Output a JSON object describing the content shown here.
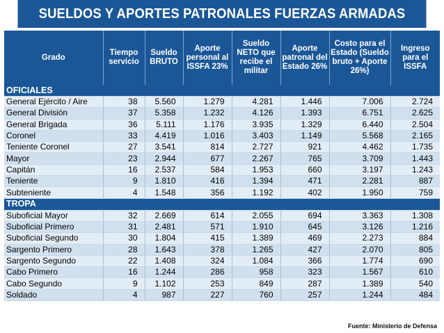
{
  "title": "SUELDOS Y APORTES PATRONALES FUERZAS ARMADAS",
  "headers": [
    "Grado",
    "Tiempo servicio",
    "Sueldo BRUTO",
    "Aporte personal al ISSFA 23%",
    "Sueldo NETO que recibe el militar",
    "Aporte patronal del Estado 26%",
    "Costo para el Estado (Sueldo bruto + Aporte 26%)",
    "Ingreso para el ISSFA"
  ],
  "sections": [
    {
      "name": "OFICIALES",
      "rows": [
        [
          "General Ejército / Aire",
          "38",
          "5.560",
          "1.279",
          "4.281",
          "1.446",
          "7.006",
          "2.724"
        ],
        [
          "General División",
          "37",
          "5.358",
          "1.232",
          "4.126",
          "1.393",
          "6.751",
          "2.625"
        ],
        [
          "General Brigada",
          "36",
          "5.111",
          "1.176",
          "3.935",
          "1.329",
          "6.440",
          "2.504"
        ],
        [
          "Coronel",
          "33",
          "4.419",
          "1.016",
          "3.403",
          "1.149",
          "5.568",
          "2.165"
        ],
        [
          "Teniente Coronel",
          "27",
          "3.541",
          "814",
          "2.727",
          "921",
          "4.462",
          "1.735"
        ],
        [
          "Mayor",
          "23",
          "2.944",
          "677",
          "2.267",
          "765",
          "3.709",
          "1.443"
        ],
        [
          "Capitán",
          "16",
          "2.537",
          "584",
          "1.953",
          "660",
          "3.197",
          "1.243"
        ],
        [
          "Teniente",
          "9",
          "1.810",
          "416",
          "1.394",
          "471",
          "2.281",
          "887"
        ],
        [
          "Subteniente",
          "4",
          "1.548",
          "356",
          "1.192",
          "402",
          "1.950",
          "759"
        ]
      ]
    },
    {
      "name": "TROPA",
      "rows": [
        [
          "Suboficial Mayor",
          "32",
          "2.669",
          "614",
          "2.055",
          "694",
          "3.363",
          "1.308"
        ],
        [
          "Suboficial Primero",
          "31",
          "2.481",
          "571",
          "1.910",
          "645",
          "3.126",
          "1.216"
        ],
        [
          "Suboficial Segundo",
          "30",
          "1.804",
          "415",
          "1.389",
          "469",
          "2.273",
          "884"
        ],
        [
          "Sargento Primero",
          "28",
          "1.643",
          "378",
          "1.265",
          "427",
          "2.070",
          "805"
        ],
        [
          "Sargento Segundo",
          "22",
          "1.408",
          "324",
          "1.084",
          "366",
          "1.774",
          "690"
        ],
        [
          "Cabo Primero",
          "16",
          "1.244",
          "286",
          "958",
          "323",
          "1.567",
          "610"
        ],
        [
          "Cabo Segundo",
          "9",
          "1.102",
          "253",
          "849",
          "287",
          "1.389",
          "540"
        ],
        [
          "Soldado",
          "4",
          "987",
          "227",
          "760",
          "257",
          "1.244",
          "484"
        ]
      ]
    }
  ],
  "source": "Fuente: Ministerio de Defensa",
  "colors": {
    "header_bg": "#1b5797",
    "row_light": "#e3edf6",
    "row_dark": "#d0e0ee"
  }
}
